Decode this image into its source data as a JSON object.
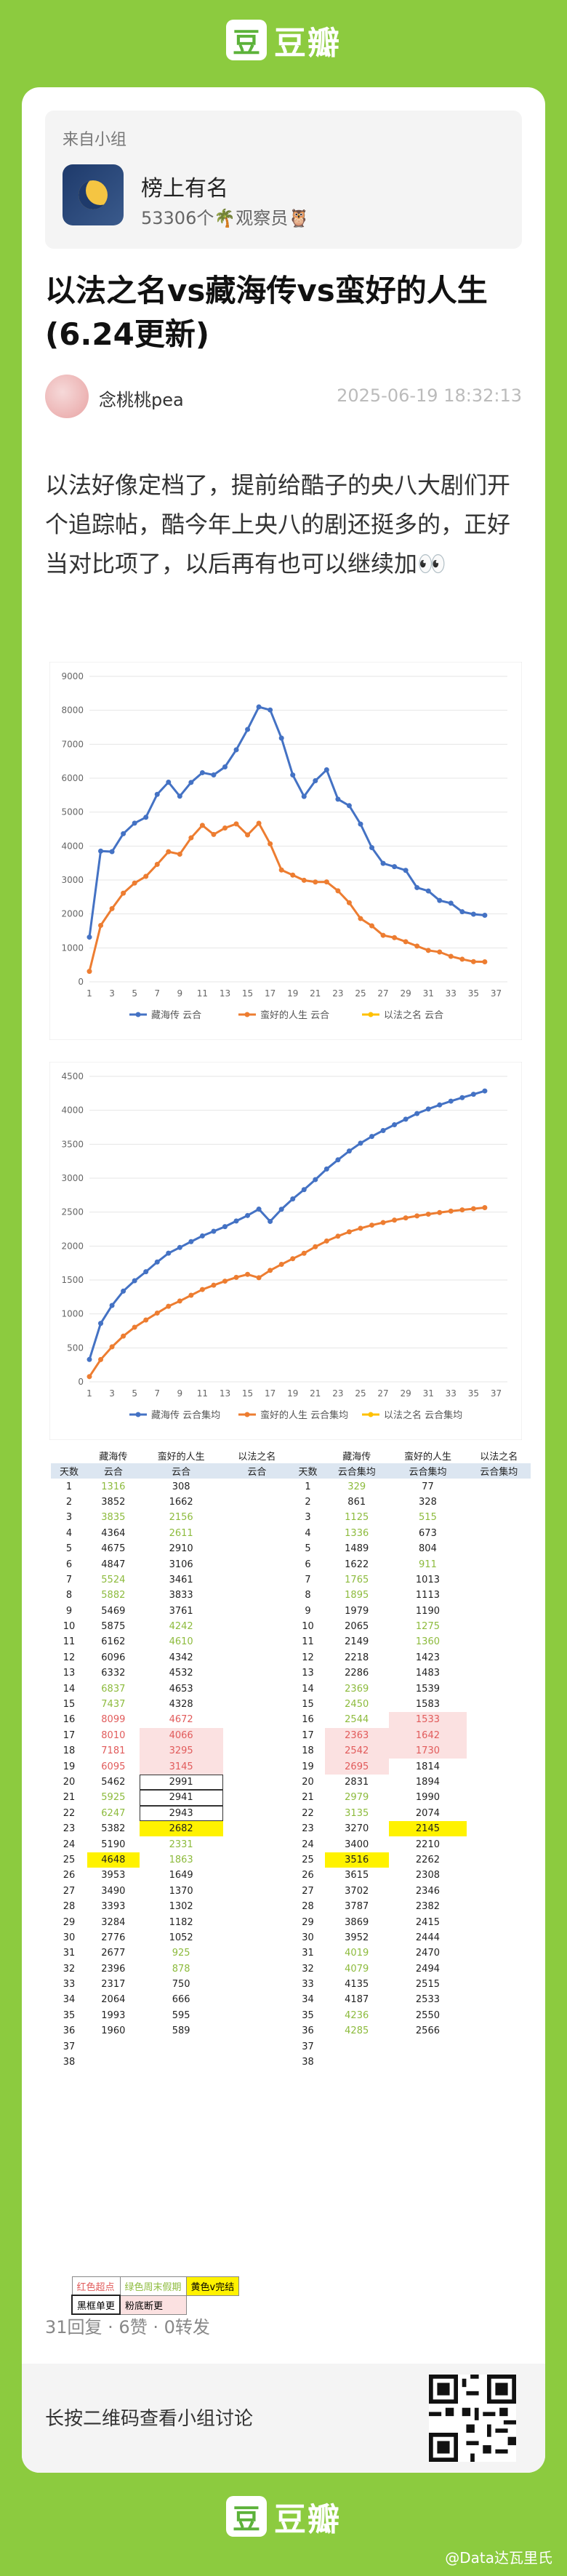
{
  "brand": {
    "logo_char": "豆",
    "name": "豆瓣"
  },
  "group": {
    "from_label": "来自小组",
    "name": "榜上有名",
    "members": "53306个",
    "member_title": "观察员"
  },
  "post": {
    "title": "以法之名vs藏海传vs蛮好的人生(6.24更新)",
    "author": "念桃桃pea",
    "time": "2025-06-19 18:32:13",
    "body": "以法好像定档了，提前给酷子的央八大剧们开个追踪帖，酷今年上央八的剧还挺多的，正好当对比项了，以后再有也可以继续加👀"
  },
  "charts": [
    {
      "type": "line",
      "ylim": [
        0,
        9000
      ],
      "yticks": [
        0,
        1000,
        2000,
        3000,
        4000,
        5000,
        6000,
        7000,
        8000,
        9000
      ],
      "xticks": [
        1,
        3,
        5,
        7,
        9,
        11,
        13,
        15,
        17,
        19,
        21,
        23,
        25,
        27,
        29,
        31,
        33,
        35,
        37
      ],
      "series": [
        {
          "name": "藏海传 云合",
          "color": "#4472c4",
          "values": [
            1316,
            3852,
            3835,
            4364,
            4675,
            4847,
            5524,
            5882,
            5469,
            5875,
            6162,
            6096,
            6332,
            6837,
            7437,
            8099,
            8010,
            7181,
            6095,
            5462,
            5925,
            6247,
            5382,
            5190,
            4648,
            3953,
            3490,
            3393,
            3284,
            2776,
            2677,
            2396,
            2317,
            2064,
            1993,
            1960
          ]
        },
        {
          "name": "蛮好的人生 云合",
          "color": "#ed7d31",
          "values": [
            308,
            1662,
            2156,
            2611,
            2910,
            3106,
            3461,
            3833,
            3761,
            4242,
            4610,
            4342,
            4532,
            4653,
            4328,
            4672,
            4066,
            3295,
            3145,
            2991,
            2941,
            2943,
            2682,
            2331,
            1863,
            1649,
            1370,
            1302,
            1182,
            1052,
            925,
            878,
            750,
            666,
            595,
            589
          ]
        },
        {
          "name": "以法之名 云合",
          "color": "#ffc000",
          "values": []
        }
      ]
    },
    {
      "type": "line",
      "ylim": [
        0,
        4500
      ],
      "yticks": [
        0,
        500,
        1000,
        1500,
        2000,
        2500,
        3000,
        3500,
        4000,
        4500
      ],
      "xticks": [
        1,
        3,
        5,
        7,
        9,
        11,
        13,
        15,
        17,
        19,
        21,
        23,
        25,
        27,
        29,
        31,
        33,
        35,
        37
      ],
      "series": [
        {
          "name": "藏海传 云合集均",
          "color": "#4472c4",
          "values": [
            329,
            861,
            1125,
            1336,
            1489,
            1622,
            1765,
            1895,
            1979,
            2065,
            2149,
            2218,
            2286,
            2369,
            2450,
            2544,
            2363,
            2542,
            2695,
            2831,
            2979,
            3135,
            3270,
            3400,
            3516,
            3615,
            3702,
            3787,
            3869,
            3952,
            4019,
            4079,
            4135,
            4187,
            4236,
            4285
          ]
        },
        {
          "name": "蛮好的人生 云合集均",
          "color": "#ed7d31",
          "values": [
            77,
            328,
            515,
            673,
            804,
            911,
            1013,
            1113,
            1190,
            1275,
            1360,
            1423,
            1483,
            1539,
            1583,
            1533,
            1642,
            1730,
            1814,
            1894,
            1990,
            2074,
            2145,
            2210,
            2262,
            2308,
            2346,
            2382,
            2415,
            2444,
            2470,
            2494,
            2515,
            2533,
            2550,
            2566
          ]
        },
        {
          "name": "以法之名 云合集均",
          "color": "#ffc000",
          "values": []
        }
      ]
    }
  ],
  "table": {
    "left_headers": [
      "",
      "藏海传",
      "蛮好的人生",
      "以法之名"
    ],
    "left_sub": [
      "天数",
      "云合",
      "云合",
      "云合"
    ],
    "right_headers": [
      "",
      "藏海传",
      "蛮好的人生",
      "以法之名"
    ],
    "right_sub": [
      "天数",
      "云合集均",
      "云合集均",
      "云合集均"
    ],
    "days": [
      "1",
      "2",
      "3",
      "4",
      "5",
      "6",
      "7",
      "8",
      "9",
      "10",
      "11",
      "12",
      "13",
      "14",
      "15",
      "16",
      "17",
      "18",
      "19",
      "20",
      "21",
      "22",
      "23",
      "24",
      "25",
      "26",
      "27",
      "28",
      "29",
      "30",
      "31",
      "32",
      "33",
      "34",
      "35",
      "36",
      "37",
      "38"
    ],
    "zhc": [
      "1316",
      "3852",
      "3835",
      "4364",
      "4675",
      "4847",
      "5524",
      "5882",
      "5469",
      "5875",
      "6162",
      "6096",
      "6332",
      "6837",
      "7437",
      "8099",
      "8010",
      "7181",
      "6095",
      "5462",
      "5925",
      "6247",
      "5382",
      "5190",
      "4648",
      "3953",
      "3490",
      "3393",
      "3284",
      "2776",
      "2677",
      "2396",
      "2317",
      "2064",
      "1993",
      "1960",
      "",
      ""
    ],
    "mhd": [
      "308",
      "1662",
      "2156",
      "2611",
      "2910",
      "3106",
      "3461",
      "3833",
      "3761",
      "4242",
      "4610",
      "4342",
      "4532",
      "4653",
      "4328",
      "4672",
      "4066",
      "3295",
      "3145",
      "2991",
      "2941",
      "2943",
      "2682",
      "2331",
      "1863",
      "1649",
      "1370",
      "1302",
      "1182",
      "1052",
      "925",
      "878",
      "750",
      "666",
      "595",
      "589",
      "",
      ""
    ],
    "zhc_avg": [
      "329",
      "861",
      "1125",
      "1336",
      "1489",
      "1622",
      "1765",
      "1895",
      "1979",
      "2065",
      "2149",
      "2218",
      "2286",
      "2369",
      "2450",
      "2544",
      "2363",
      "2542",
      "2695",
      "2831",
      "2979",
      "3135",
      "3270",
      "3400",
      "3516",
      "3615",
      "3702",
      "3787",
      "3869",
      "3952",
      "4019",
      "4079",
      "4135",
      "4187",
      "4236",
      "4285",
      "",
      ""
    ],
    "mhd_avg": [
      "77",
      "328",
      "515",
      "673",
      "804",
      "911",
      "1013",
      "1113",
      "1190",
      "1275",
      "1360",
      "1423",
      "1483",
      "1539",
      "1583",
      "1533",
      "1642",
      "1730",
      "1814",
      "1894",
      "1990",
      "2074",
      "2145",
      "2210",
      "2262",
      "2308",
      "2346",
      "2382",
      "2415",
      "2444",
      "2470",
      "2494",
      "2515",
      "2533",
      "2550",
      "2566",
      "",
      ""
    ]
  },
  "legend_notes": {
    "row1": [
      "红色超点",
      "绿色周末假期",
      "黄色v完结"
    ],
    "row2": [
      "黑框单更",
      "粉底断更"
    ]
  },
  "footer": {
    "stats": "31回复 · 6赞 · 0转发",
    "qr_hint": "长按二维码查看小组讨论",
    "watermark": "@Data达瓦里氏"
  }
}
